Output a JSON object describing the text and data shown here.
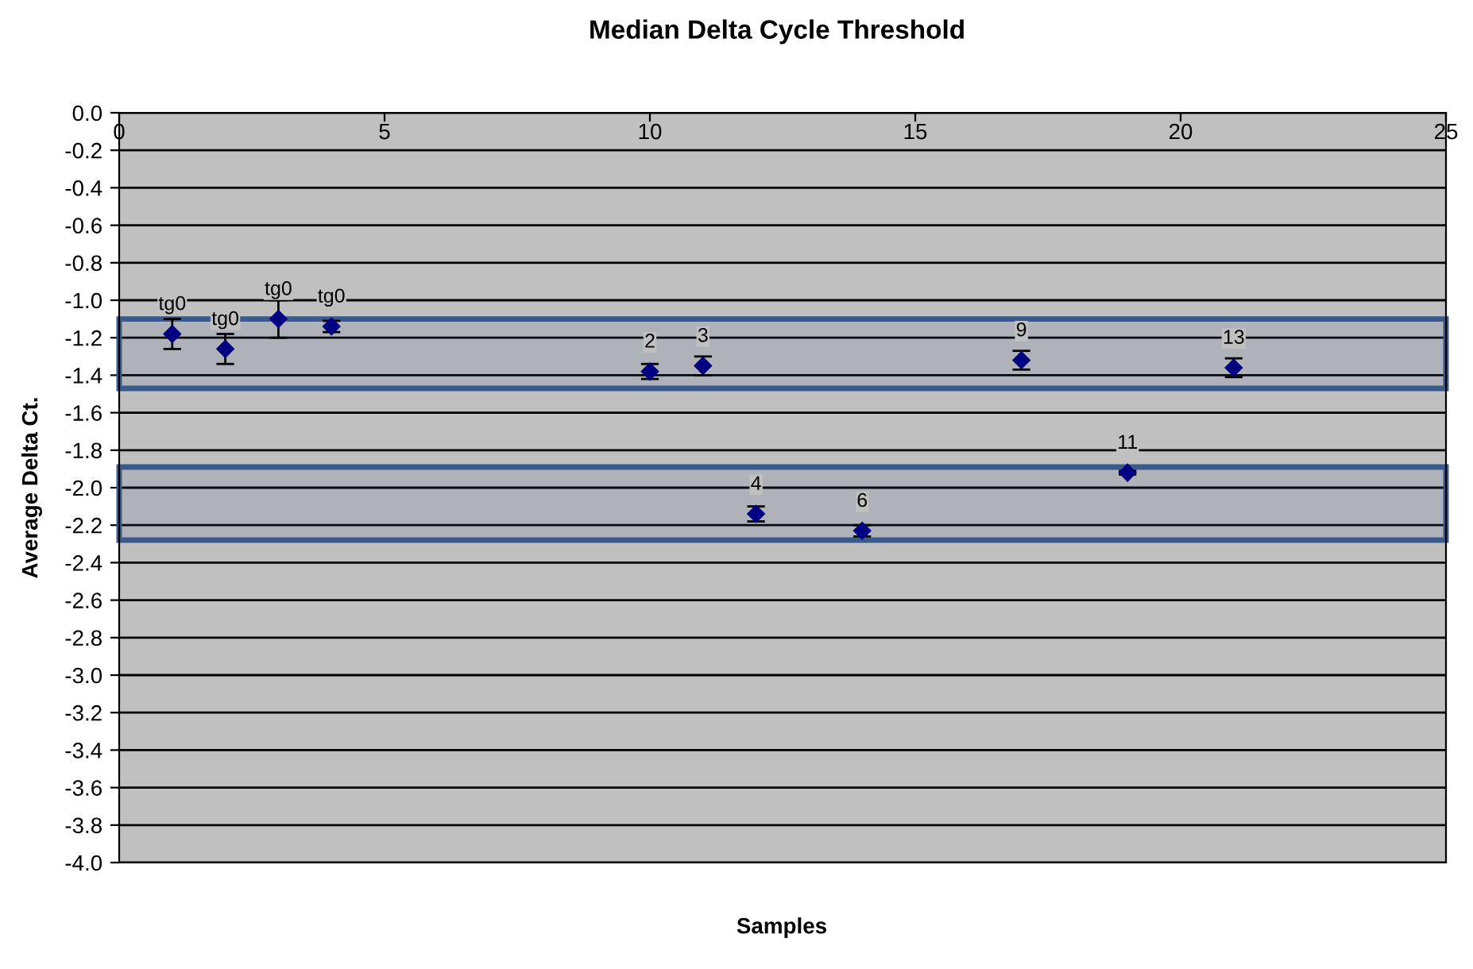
{
  "chart_data": {
    "type": "scatter",
    "title": "Median Delta Cycle Threshold",
    "xlabel": "Samples",
    "ylabel": "Average Delta Ct.",
    "x": [
      1,
      2,
      3,
      4,
      10,
      11,
      12,
      14,
      17,
      19,
      21
    ],
    "series": [
      {
        "color": "#000080",
        "values": [
          -1.18,
          -1.26,
          -1.1,
          -1.14,
          -1.38,
          -1.35,
          -2.14,
          -2.23,
          -1.32,
          -1.92,
          -1.36
        ],
        "errors": [
          0.08,
          0.08,
          0.1,
          0.03,
          0.04,
          0.05,
          0.04,
          0.03,
          0.05,
          0.01,
          0.05
        ]
      }
    ],
    "marker": "diamond",
    "annotations": [
      {
        "text": "tg0",
        "x": 1,
        "y": -1.18
      },
      {
        "text": "tg0",
        "x": 2,
        "y": -1.26
      },
      {
        "text": "tg0",
        "x": 3,
        "y": -1.1
      },
      {
        "text": "tg0",
        "x": 4,
        "y": -1.14
      },
      {
        "text": "2",
        "x": 10,
        "y": -1.38
      },
      {
        "text": "3",
        "x": 11,
        "y": -1.35
      },
      {
        "text": "4",
        "x": 12,
        "y": -2.14
      },
      {
        "text": "6",
        "x": 14,
        "y": -2.23
      },
      {
        "text": "9",
        "x": 17,
        "y": -1.32
      },
      {
        "text": "11",
        "x": 19,
        "y": -1.92
      },
      {
        "text": "13",
        "x": 21,
        "y": -1.36
      }
    ],
    "bands": [
      {
        "axis": "y",
        "from": -1.1,
        "to": -1.47,
        "color": "#3a5a8c"
      },
      {
        "axis": "y",
        "from": -1.89,
        "to": -2.28,
        "color": "#3a5a8c"
      }
    ],
    "xlim": [
      0,
      25
    ],
    "xticks": [
      0,
      5,
      10,
      15,
      20,
      25
    ],
    "ylim": [
      -4.0,
      0.0
    ],
    "yticks": [
      {
        "value": 0.0,
        "label": "0.0"
      },
      {
        "value": -0.2,
        "label": "-0.2"
      },
      {
        "value": -0.4,
        "label": "-0.4"
      },
      {
        "value": -0.6,
        "label": "-0.6"
      },
      {
        "value": -0.8,
        "label": "-0.8"
      },
      {
        "value": -1.0,
        "label": "-1.0"
      },
      {
        "value": -1.2,
        "label": "-1.2"
      },
      {
        "value": -1.4,
        "label": "-1.4"
      },
      {
        "value": -1.6,
        "label": "-1.6"
      },
      {
        "value": -1.8,
        "label": "-1.8"
      },
      {
        "value": -2.0,
        "label": "-2.0"
      },
      {
        "value": -2.2,
        "label": "-2.2"
      },
      {
        "value": -2.4,
        "label": "-2.4"
      },
      {
        "value": -2.6,
        "label": "-2.6"
      },
      {
        "value": -2.8,
        "label": "-2.8"
      },
      {
        "value": -3.0,
        "label": "-3.0"
      },
      {
        "value": -3.2,
        "label": "-3.2"
      },
      {
        "value": -3.4,
        "label": "-3.4"
      },
      {
        "value": -3.6,
        "label": "-3.6"
      },
      {
        "value": -3.8,
        "label": "-3.8"
      },
      {
        "value": -4.0,
        "label": "-4.0"
      }
    ],
    "grid": "y"
  }
}
